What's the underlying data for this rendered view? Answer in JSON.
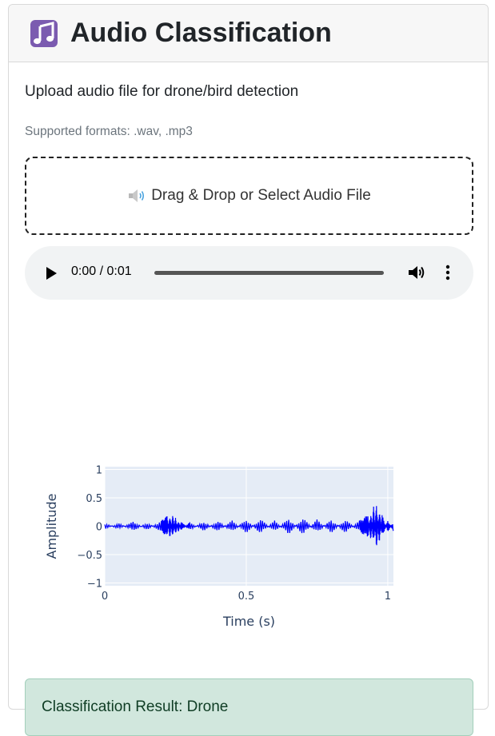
{
  "header": {
    "icon": "musical-notes-icon",
    "title": "Audio Classification"
  },
  "description": "Upload audio file for drone/bird detection",
  "supported_formats": "Supported formats: .wav, .mp3",
  "dropzone": {
    "icon": "speaker-icon",
    "label": "Drag & Drop or Select Audio File"
  },
  "audio_player": {
    "time": "0:00 / 0:01",
    "progress": 0
  },
  "chart_data": {
    "type": "line",
    "xlabel": "Time (s)",
    "ylabel": "Amplitude",
    "xlim": [
      0,
      1.02
    ],
    "ylim": [
      -1.05,
      1.05
    ],
    "xticks": [
      {
        "value": 0,
        "label": "0"
      },
      {
        "value": 0.5,
        "label": "0.5"
      },
      {
        "value": 1,
        "label": "1"
      }
    ],
    "yticks": [
      {
        "value": 1,
        "label": "1"
      },
      {
        "value": 0.5,
        "label": "0.5"
      },
      {
        "value": 0,
        "label": "0"
      },
      {
        "value": -0.5,
        "label": "−0.5"
      },
      {
        "value": -1,
        "label": "−1"
      }
    ],
    "grid": true,
    "line_color": "#0000ff",
    "background": "#e5ecf6",
    "series": [
      {
        "x": [
          0,
          0.05,
          0.1,
          0.15,
          0.2,
          0.22,
          0.23,
          0.24,
          0.25,
          0.26,
          0.27,
          0.3,
          0.35,
          0.4,
          0.45,
          0.5,
          0.55,
          0.6,
          0.65,
          0.7,
          0.75,
          0.8,
          0.85,
          0.9,
          0.93,
          0.94,
          0.95,
          0.96,
          0.97,
          0.98,
          1.0,
          1.02
        ],
        "y": [
          0.05,
          -0.05,
          0.08,
          -0.06,
          0.1,
          0.18,
          -0.2,
          0.2,
          -0.15,
          0.1,
          -0.08,
          0.07,
          -0.08,
          0.09,
          -0.1,
          0.12,
          -0.13,
          0.1,
          -0.14,
          0.15,
          -0.12,
          0.12,
          -0.12,
          0.1,
          0.2,
          -0.25,
          0.35,
          -0.4,
          0.3,
          -0.2,
          0.1,
          -0.08
        ]
      }
    ]
  },
  "result": "Classification Result: Drone"
}
